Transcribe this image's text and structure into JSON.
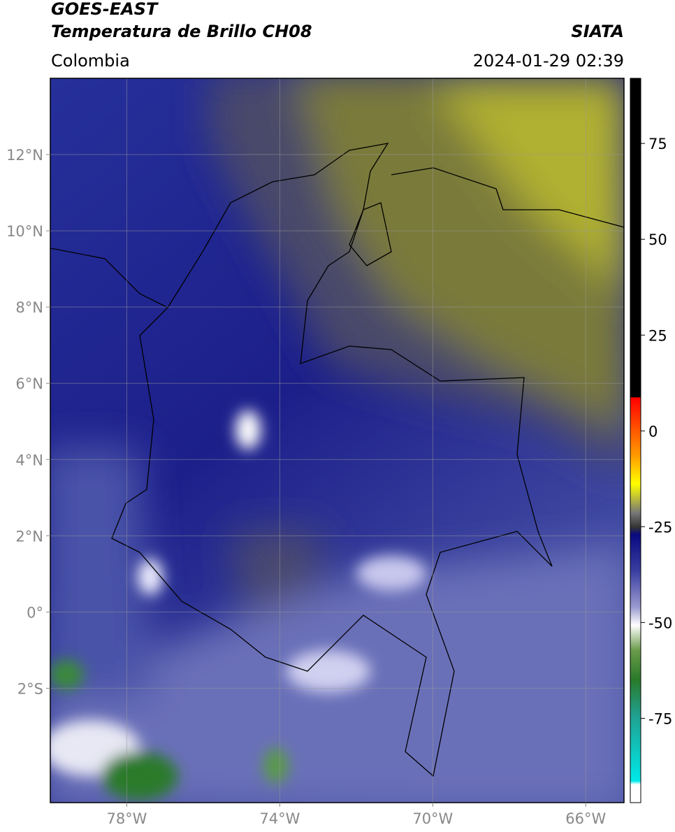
{
  "header": {
    "title": "GOES-EAST",
    "subtitle": "Temperatura de Brillo CH08",
    "source": "SIATA",
    "region": "Colombia",
    "datetime": "2024-01-29 02:39"
  },
  "map": {
    "type": "map",
    "xlim": [
      -80,
      -65
    ],
    "ylim": [
      -5,
      14
    ],
    "xticks": [
      {
        "value": -78,
        "label": "78°W"
      },
      {
        "value": -74,
        "label": "74°W"
      },
      {
        "value": -70,
        "label": "70°W"
      },
      {
        "value": -66,
        "label": "66°W"
      }
    ],
    "yticks": [
      {
        "value": 12,
        "label": "12°N"
      },
      {
        "value": 10,
        "label": "10°N"
      },
      {
        "value": 8,
        "label": "8°N"
      },
      {
        "value": 6,
        "label": "6°N"
      },
      {
        "value": 4,
        "label": "4°N"
      },
      {
        "value": 2,
        "label": "2°N"
      },
      {
        "value": 0,
        "label": "0°"
      },
      {
        "value": -2,
        "label": "2°S"
      }
    ],
    "grid": true
  },
  "colorbar": {
    "lim": [
      -97,
      92
    ],
    "ticks": [
      75,
      50,
      25,
      0,
      -25,
      -50,
      -75
    ]
  }
}
